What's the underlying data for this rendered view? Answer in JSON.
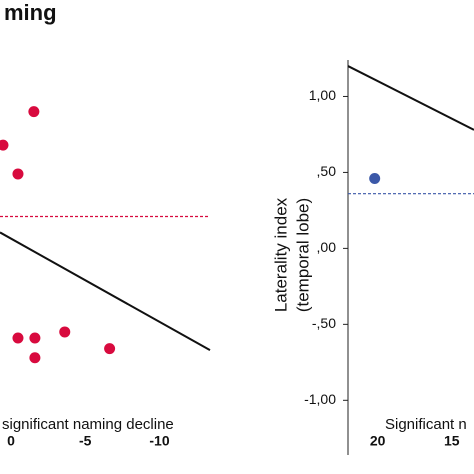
{
  "chart_data": [
    {
      "type": "scatter",
      "title": "ming",
      "annotation": "significant naming decline",
      "x": [
        0.54,
        -1.54,
        -0.47,
        -0.47,
        -1.61,
        -1.61,
        -3.62,
        -6.64
      ],
      "series": [
        {
          "color": "#d80a3e",
          "values": [
            0.68,
            0.9,
            0.49,
            -0.59,
            -0.59,
            -0.72,
            -0.55,
            -0.66
          ]
        }
      ],
      "lines": [
        {
          "x": [
            0.74,
            -13.4
          ],
          "y": [
            0.105,
            -0.67
          ],
          "color": "#111111"
        }
      ],
      "hlines": [
        {
          "value": 0.21,
          "color": "#d80a3e",
          "dashed": true
        }
      ],
      "xlim": [
        0.74,
        -13.4
      ],
      "ylim": [
        1.24,
        -1.36
      ],
      "xticks": [
        0,
        -5,
        -10
      ]
    },
    {
      "type": "scatter",
      "annotation": "Significant n",
      "ylabel": [
        "Laterality index",
        "(temporal lobe)"
      ],
      "x": [
        20.2
      ],
      "series": [
        {
          "color": "#3b58a8",
          "values": [
            0.46
          ]
        }
      ],
      "lines": [
        {
          "x": [
            22.0,
            13.5
          ],
          "y": [
            1.2,
            0.78
          ],
          "color": "#111111"
        }
      ],
      "hlines": [
        {
          "value": 0.36,
          "color": "#3b58a8",
          "dashed": true
        }
      ],
      "xlim": [
        22.0,
        13.5
      ],
      "ylim": [
        1.24,
        -1.36
      ],
      "xticks": [
        20,
        15
      ],
      "yticks": [
        {
          "value": 1,
          "label": "1,00"
        },
        {
          "value": 0.5,
          "label": ",50"
        },
        {
          "value": 0,
          "label": ",00"
        },
        {
          "value": -0.5,
          "label": "-,50"
        },
        {
          "value": -1,
          "label": "-1,00"
        }
      ],
      "axis_line": true
    }
  ]
}
